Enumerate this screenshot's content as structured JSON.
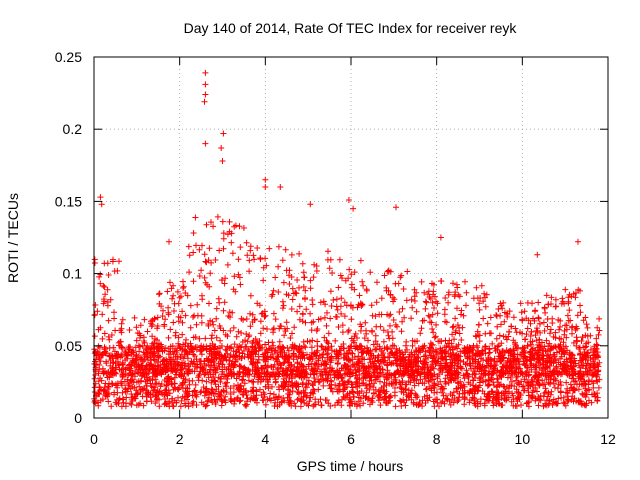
{
  "chart_data": {
    "type": "scatter",
    "title": "Day 140 of 2014, Rate Of TEC Index for receiver reyk",
    "xlabel": "GPS time / hours",
    "ylabel": "ROTI / TECUs",
    "xlim": [
      0,
      12
    ],
    "ylim": [
      0,
      0.25
    ],
    "xticks": [
      0,
      2,
      4,
      6,
      8,
      10,
      12
    ],
    "yticks": [
      0,
      0.05,
      0.1,
      0.15,
      0.2,
      0.25
    ],
    "xtick_labels": [
      "0",
      "2",
      "4",
      "6",
      "8",
      "10",
      "12"
    ],
    "ytick_labels": [
      "0",
      "0.05",
      "0.1",
      "0.15",
      "0.2",
      "0.25"
    ],
    "grid": true,
    "marker": "+",
    "color": "#ff0000",
    "series": [
      {
        "name": "ROTI",
        "x_range": [
          0.0,
          11.8
        ],
        "baseline_band": [
          0.008,
          0.05
        ],
        "notable_points": [
          {
            "x": 2.6,
            "y": 0.239
          },
          {
            "x": 2.6,
            "y": 0.231
          },
          {
            "x": 2.6,
            "y": 0.224
          },
          {
            "x": 2.58,
            "y": 0.219
          },
          {
            "x": 3.02,
            "y": 0.197
          },
          {
            "x": 2.97,
            "y": 0.187
          },
          {
            "x": 2.6,
            "y": 0.19
          },
          {
            "x": 3.0,
            "y": 0.178
          },
          {
            "x": 4.0,
            "y": 0.165
          },
          {
            "x": 4.0,
            "y": 0.16
          },
          {
            "x": 4.35,
            "y": 0.16
          },
          {
            "x": 5.05,
            "y": 0.148
          },
          {
            "x": 5.95,
            "y": 0.151
          },
          {
            "x": 6.05,
            "y": 0.145
          },
          {
            "x": 7.05,
            "y": 0.146
          },
          {
            "x": 0.15,
            "y": 0.153
          },
          {
            "x": 0.18,
            "y": 0.148
          },
          {
            "x": 11.3,
            "y": 0.122
          },
          {
            "x": 10.35,
            "y": 0.113
          },
          {
            "x": 8.1,
            "y": 0.125
          },
          {
            "x": 1.75,
            "y": 0.122
          }
        ]
      }
    ]
  }
}
